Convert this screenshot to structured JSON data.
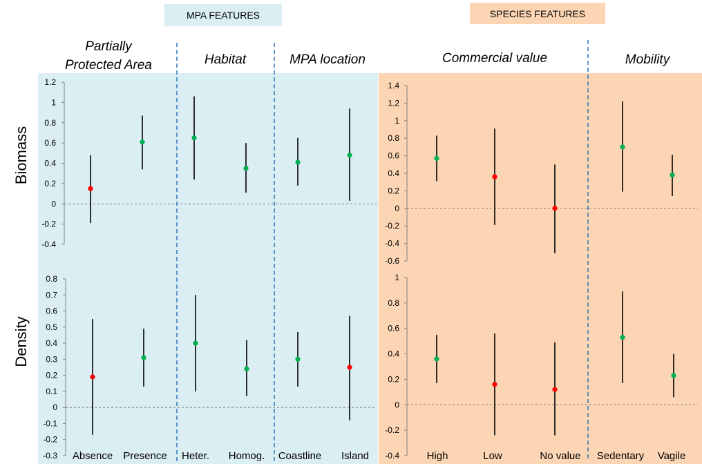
{
  "headers": {
    "mpa": "MPA FEATURES",
    "species": "SPECIES  FEATURES"
  },
  "groups": {
    "ppa_line1": "Partially",
    "ppa_line2": "Protected Area",
    "habitat": "Habitat",
    "location": "MPA location",
    "commercial": "Commercial value",
    "mobility": "Mobility"
  },
  "row_labels": {
    "biomass": "Biomass",
    "density": "Density"
  },
  "colors": {
    "mpa_bg": "#dbeef4",
    "species_bg": "#fcd5b4",
    "divider": "#2e75b6",
    "positive": "#00b050",
    "negative": "#ff0000",
    "bar": "#000000",
    "zero_line": "#808080"
  },
  "chart_data": [
    {
      "id": "mpa-biomass",
      "type": "scatter",
      "error_bars": true,
      "ylabel": "Biomass",
      "ylim": [
        -0.4,
        1.2
      ],
      "yticks": [
        "1.2",
        "1",
        "0.8",
        "0.6",
        "0.4",
        "0.2",
        "0",
        "-0.2",
        "-0.4"
      ],
      "categories": [
        "Absence",
        "Presence",
        "Heter.",
        "Homog.",
        "Coastline",
        "Island"
      ],
      "values": [
        0.15,
        0.61,
        0.65,
        0.35,
        0.41,
        0.48
      ],
      "lower": [
        -0.19,
        0.34,
        0.24,
        0.11,
        0.18,
        0.03
      ],
      "upper": [
        0.48,
        0.87,
        1.06,
        0.6,
        0.65,
        0.94
      ],
      "point_colors": [
        "red",
        "green",
        "green",
        "green",
        "green",
        "green"
      ]
    },
    {
      "id": "mpa-density",
      "type": "scatter",
      "error_bars": true,
      "ylabel": "Density",
      "ylim": [
        -0.3,
        0.8
      ],
      "yticks": [
        "0.8",
        "0.7",
        "0.6",
        "0.5",
        "0.4",
        "0.3",
        "0.2",
        "0.1",
        "0",
        "-0.1",
        "-0.2",
        "-0.3"
      ],
      "categories": [
        "Absence",
        "Presence",
        "Heter.",
        "Homog.",
        "Coastline",
        "Island"
      ],
      "values": [
        0.19,
        0.31,
        0.4,
        0.24,
        0.3,
        0.25
      ],
      "lower": [
        -0.17,
        0.13,
        0.1,
        0.07,
        0.13,
        -0.08
      ],
      "upper": [
        0.55,
        0.49,
        0.7,
        0.42,
        0.47,
        0.57
      ],
      "point_colors": [
        "red",
        "green",
        "green",
        "green",
        "green",
        "red"
      ]
    },
    {
      "id": "species-biomass",
      "type": "scatter",
      "error_bars": true,
      "ylabel": "Biomass",
      "ylim": [
        -0.6,
        1.4
      ],
      "yticks": [
        "1.4",
        "1.2",
        "1",
        "0.8",
        "0.6",
        "0.4",
        "0.2",
        "0",
        "-0.2",
        "-0.4",
        "-0.6"
      ],
      "categories": [
        "High",
        "Low",
        "No value",
        "Sedentary",
        "Vagile"
      ],
      "values": [
        0.57,
        0.36,
        0.0,
        0.7,
        0.38
      ],
      "lower": [
        0.31,
        -0.19,
        -0.51,
        0.19,
        0.14
      ],
      "upper": [
        0.83,
        0.91,
        0.5,
        1.22,
        0.61
      ],
      "point_colors": [
        "green",
        "red",
        "red",
        "green",
        "green"
      ]
    },
    {
      "id": "species-density",
      "type": "scatter",
      "error_bars": true,
      "ylabel": "Density",
      "ylim": [
        -0.4,
        1.0
      ],
      "yticks": [
        "1",
        "0.8",
        "0.6",
        "0.4",
        "0.2",
        "0",
        "-0.2",
        "-0.4"
      ],
      "categories": [
        "High",
        "Low",
        "No value",
        "Sedentary",
        "Vagile"
      ],
      "values": [
        0.36,
        0.16,
        0.12,
        0.53,
        0.23
      ],
      "lower": [
        0.17,
        -0.24,
        -0.24,
        0.17,
        0.06
      ],
      "upper": [
        0.55,
        0.56,
        0.49,
        0.89,
        0.4
      ],
      "point_colors": [
        "green",
        "red",
        "red",
        "green",
        "green"
      ]
    }
  ]
}
